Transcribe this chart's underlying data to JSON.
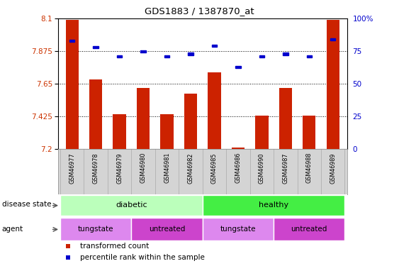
{
  "title": "GDS1883 / 1387870_at",
  "samples": [
    "GSM46977",
    "GSM46978",
    "GSM46979",
    "GSM46980",
    "GSM46981",
    "GSM46982",
    "GSM46985",
    "GSM46986",
    "GSM46990",
    "GSM46987",
    "GSM46988",
    "GSM46989"
  ],
  "bar_values": [
    8.09,
    7.68,
    7.44,
    7.62,
    7.44,
    7.58,
    7.73,
    7.21,
    7.43,
    7.62,
    7.43,
    8.09
  ],
  "percentile_values": [
    83,
    78,
    71,
    75,
    71,
    73,
    79,
    63,
    71,
    73,
    71,
    84
  ],
  "bar_bottom": 7.2,
  "ylim_left": [
    7.2,
    8.1
  ],
  "ylim_right": [
    0,
    100
  ],
  "yticks_left": [
    7.2,
    7.425,
    7.65,
    7.875,
    8.1
  ],
  "yticks_right": [
    0,
    25,
    50,
    75,
    100
  ],
  "ytick_labels_left": [
    "7.2",
    "7.425",
    "7.65",
    "7.875",
    "8.1"
  ],
  "ytick_labels_right": [
    "0",
    "25",
    "50",
    "75",
    "100%"
  ],
  "bar_color": "#cc2200",
  "percentile_color": "#0000cc",
  "grid_color": "#000000",
  "disease_state_label": "disease state",
  "disease_groups": [
    {
      "label": "diabetic",
      "start": 0,
      "end": 5,
      "color": "#bbffbb"
    },
    {
      "label": "healthy",
      "start": 6,
      "end": 11,
      "color": "#44ee44"
    }
  ],
  "agent_label": "agent",
  "agent_groups": [
    {
      "label": "tungstate",
      "start": 0,
      "end": 2,
      "color": "#dd88ee"
    },
    {
      "label": "untreated",
      "start": 3,
      "end": 5,
      "color": "#cc44cc"
    },
    {
      "label": "tungstate",
      "start": 6,
      "end": 8,
      "color": "#dd88ee"
    },
    {
      "label": "untreated",
      "start": 9,
      "end": 11,
      "color": "#cc44cc"
    }
  ],
  "legend_items": [
    {
      "label": "transformed count",
      "color": "#cc2200"
    },
    {
      "label": "percentile rank within the sample",
      "color": "#0000cc"
    }
  ],
  "bg_color": "#ffffff",
  "tick_label_color_left": "#cc3300",
  "tick_label_color_right": "#0000cc",
  "label_area_bg": "#d4d4d4",
  "label_area_divider": "#aaaaaa"
}
